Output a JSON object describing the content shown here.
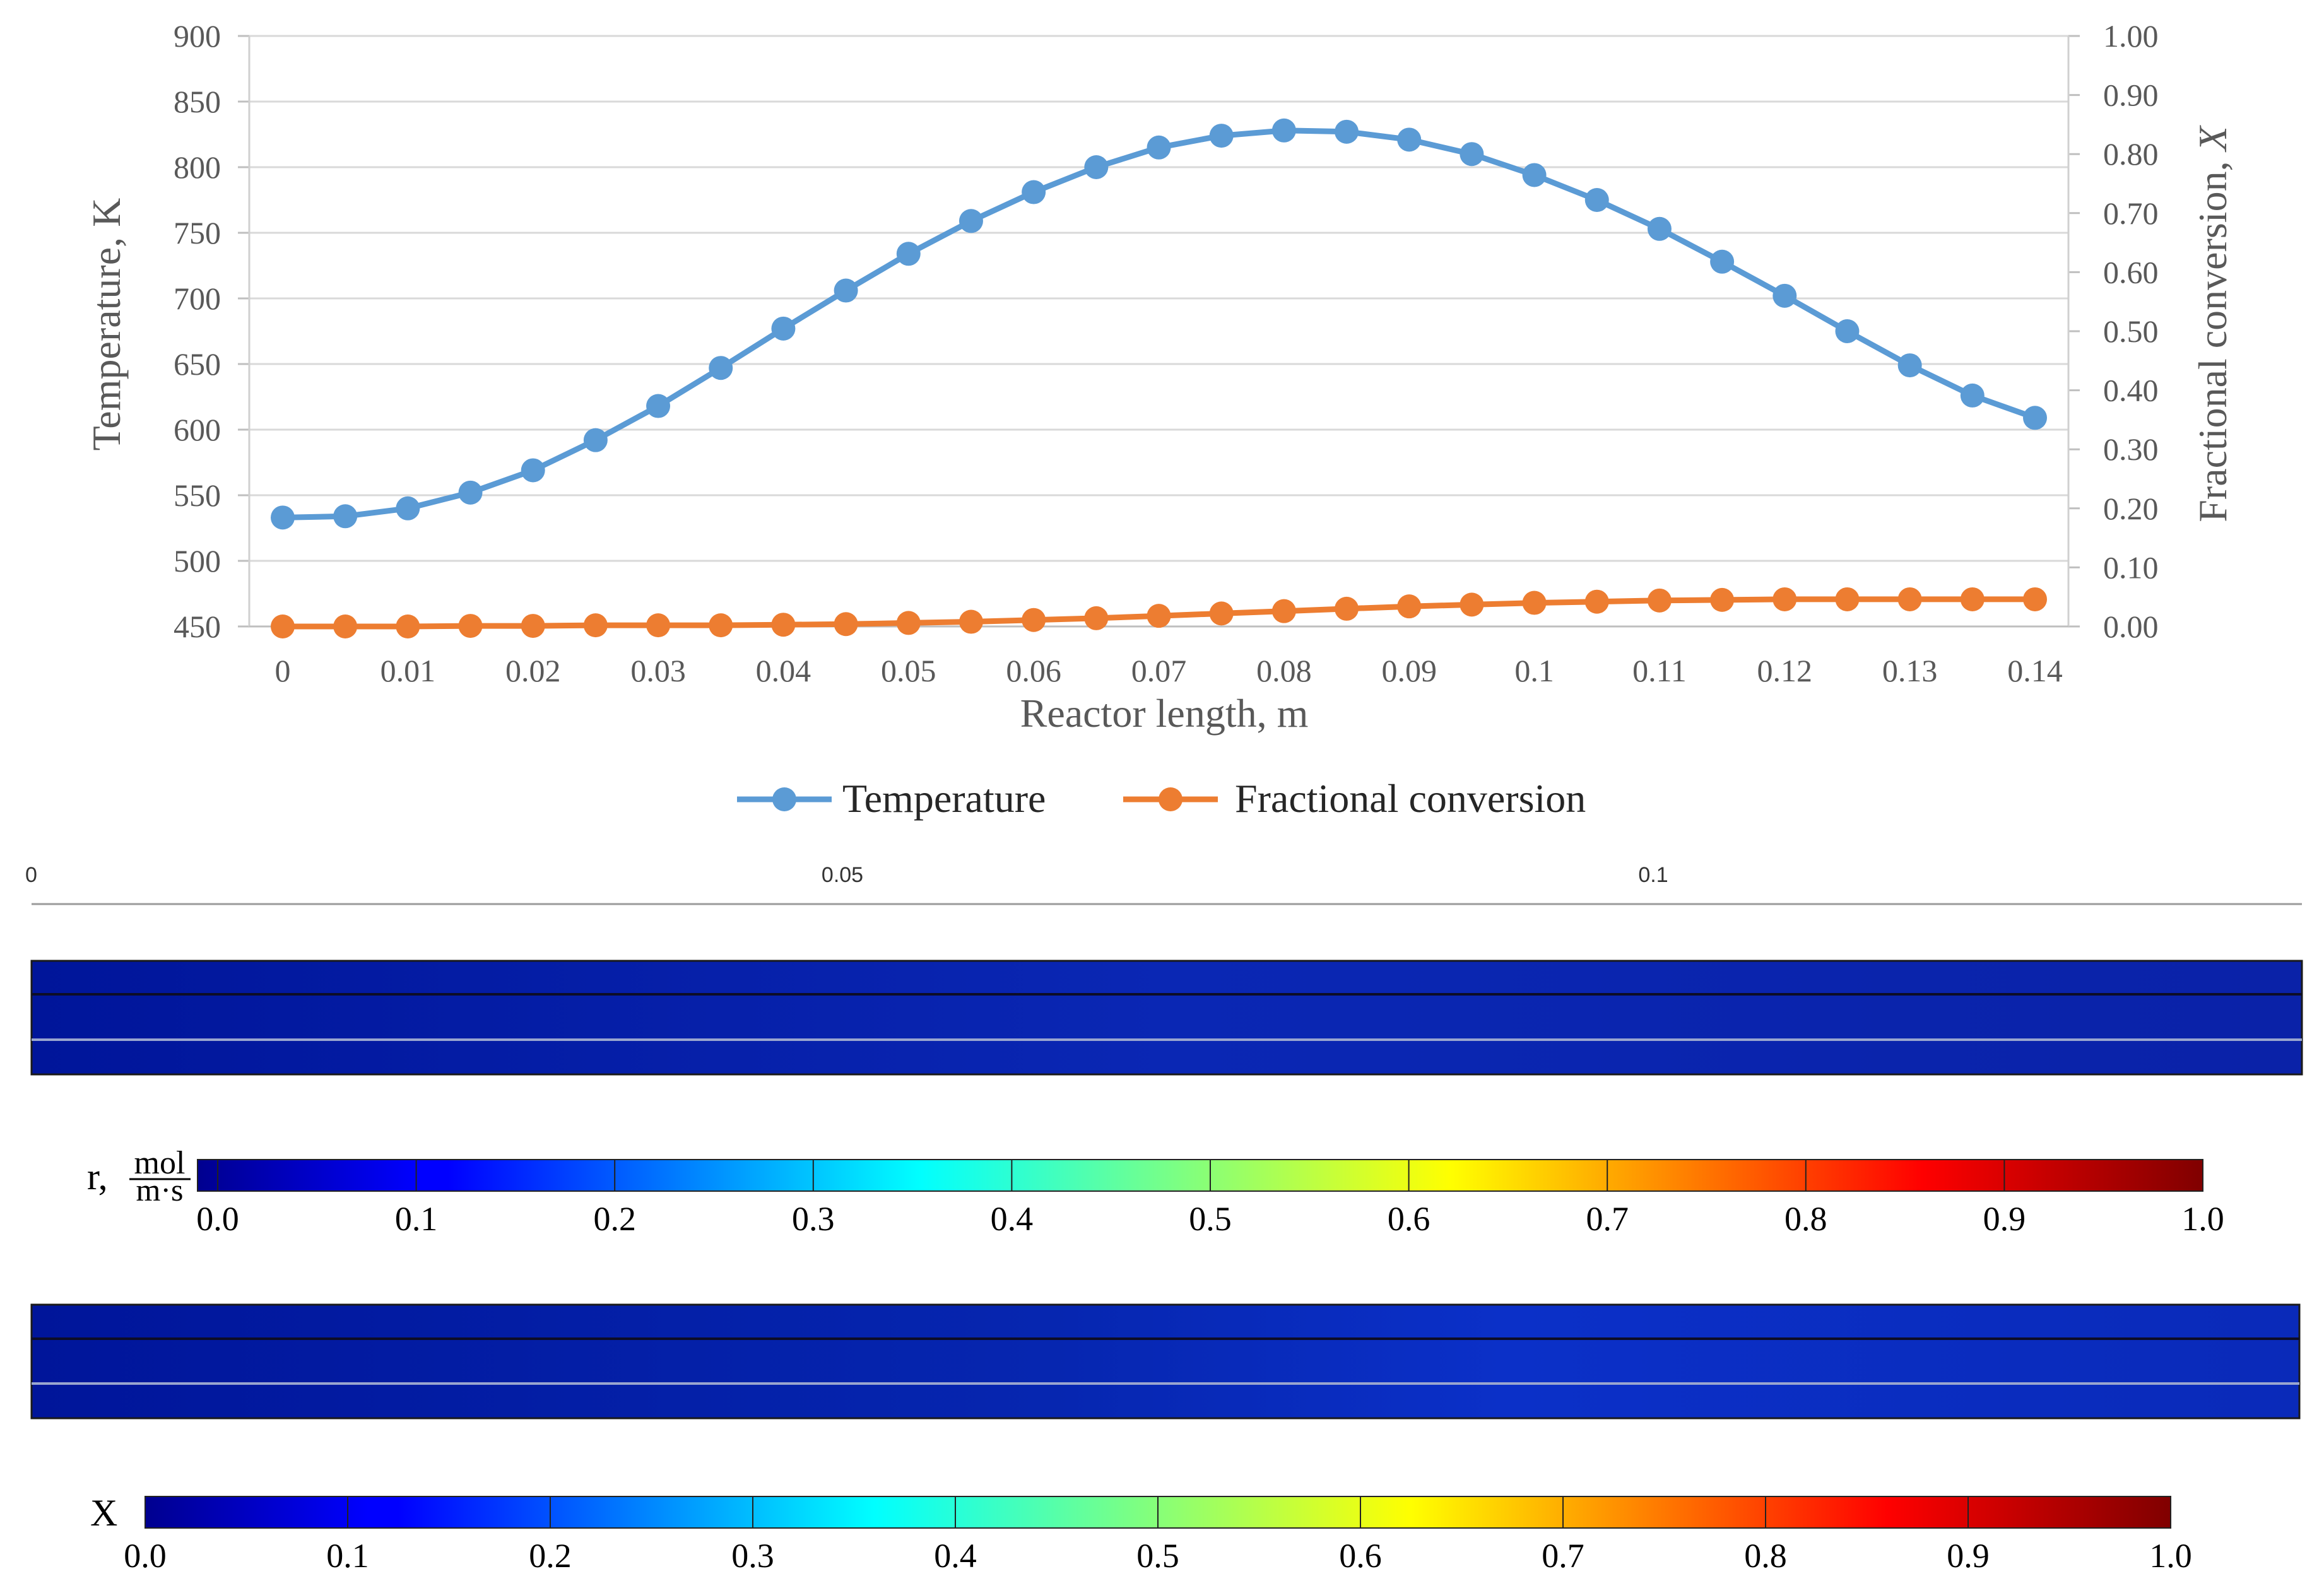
{
  "chart_data": [
    {
      "type": "line",
      "xlabel": "Reactor length, m",
      "ylabel_left": "Temperature, K",
      "ylabel_right": "Fractional conversion, ",
      "ylabel_right_symbol": "X",
      "xlim": [
        0,
        0.14
      ],
      "x_ticks": [
        0,
        0.01,
        0.02,
        0.03,
        0.04,
        0.05,
        0.06,
        0.07,
        0.08,
        0.09,
        0.1,
        0.11,
        0.12,
        0.13,
        0.14
      ],
      "x_tick_labels": [
        "0",
        "0.01",
        "0.02",
        "0.03",
        "0.04",
        "0.05",
        "0.06",
        "0.07",
        "0.08",
        "0.09",
        "0.1",
        "0.11",
        "0.12",
        "0.13",
        "0.14"
      ],
      "ylim_left": [
        450,
        900
      ],
      "y_left_tick_labels": [
        "450",
        "500",
        "550",
        "600",
        "650",
        "700",
        "750",
        "800",
        "850",
        "900"
      ],
      "ylim_right": [
        0,
        1
      ],
      "y_right_tick_labels": [
        "0.00",
        "0.10",
        "0.20",
        "0.30",
        "0.40",
        "0.50",
        "0.60",
        "0.70",
        "0.80",
        "0.90",
        "1.00"
      ],
      "grid": true,
      "legend_position": "bottom",
      "x": [
        0,
        0.005,
        0.01,
        0.015,
        0.02,
        0.025,
        0.03,
        0.035,
        0.04,
        0.045,
        0.05,
        0.055,
        0.06,
        0.065,
        0.07,
        0.075,
        0.08,
        0.085,
        0.09,
        0.095,
        0.1,
        0.105,
        0.11,
        0.115,
        0.12,
        0.125,
        0.13,
        0.135,
        0.14
      ],
      "series": [
        {
          "name": "Temperature",
          "axis": "left",
          "color": "#5B9BD5",
          "values": [
            533,
            534,
            540,
            552,
            569,
            592,
            618,
            647,
            677,
            706,
            734,
            759,
            781,
            800,
            815,
            824,
            828,
            827,
            821,
            810,
            794,
            775,
            753,
            728,
            702,
            675,
            649,
            626,
            609
          ]
        },
        {
          "name": "Fractional conversion",
          "axis": "right",
          "color": "#ED7D31",
          "values": [
            0.0,
            0.0,
            0.0,
            0.001,
            0.001,
            0.002,
            0.002,
            0.002,
            0.003,
            0.004,
            0.006,
            0.008,
            0.011,
            0.014,
            0.018,
            0.022,
            0.026,
            0.03,
            0.034,
            0.037,
            0.04,
            0.042,
            0.044,
            0.045,
            0.046,
            0.046,
            0.046,
            0.046,
            0.046
          ]
        }
      ]
    },
    {
      "type": "heatmap",
      "quantity": "r",
      "colorbar_label": "r,",
      "unit_numerator": "mol",
      "unit_denominator": "m·s",
      "colorbar_range": [
        0,
        1
      ],
      "colorbar_tick_labels": [
        "0.0",
        "0.1",
        "0.2",
        "0.3",
        "0.4",
        "0.5",
        "0.6",
        "0.7",
        "0.8",
        "0.9",
        "1.0"
      ],
      "axis_tick_labels": [
        "0",
        "0.05",
        "0.1"
      ],
      "axis_ticks": [
        0,
        0.05,
        0.1
      ],
      "length_range": [
        0,
        0.14
      ],
      "colormap": "jet",
      "approx_value_along_length": 0.02
    },
    {
      "type": "heatmap",
      "quantity": "X",
      "colorbar_label": "X",
      "colorbar_range": [
        0,
        1
      ],
      "colorbar_tick_labels": [
        "0.0",
        "0.1",
        "0.2",
        "0.3",
        "0.4",
        "0.5",
        "0.6",
        "0.7",
        "0.8",
        "0.9",
        "1.0"
      ],
      "length_range": [
        0,
        0.14
      ],
      "colormap": "jet",
      "approx_value_along_length": 0.05
    }
  ],
  "colors": {
    "grid": "#d9d9d9",
    "axis_text": "#595959",
    "jet_low": "#00008f",
    "jet_high": "#800000"
  }
}
